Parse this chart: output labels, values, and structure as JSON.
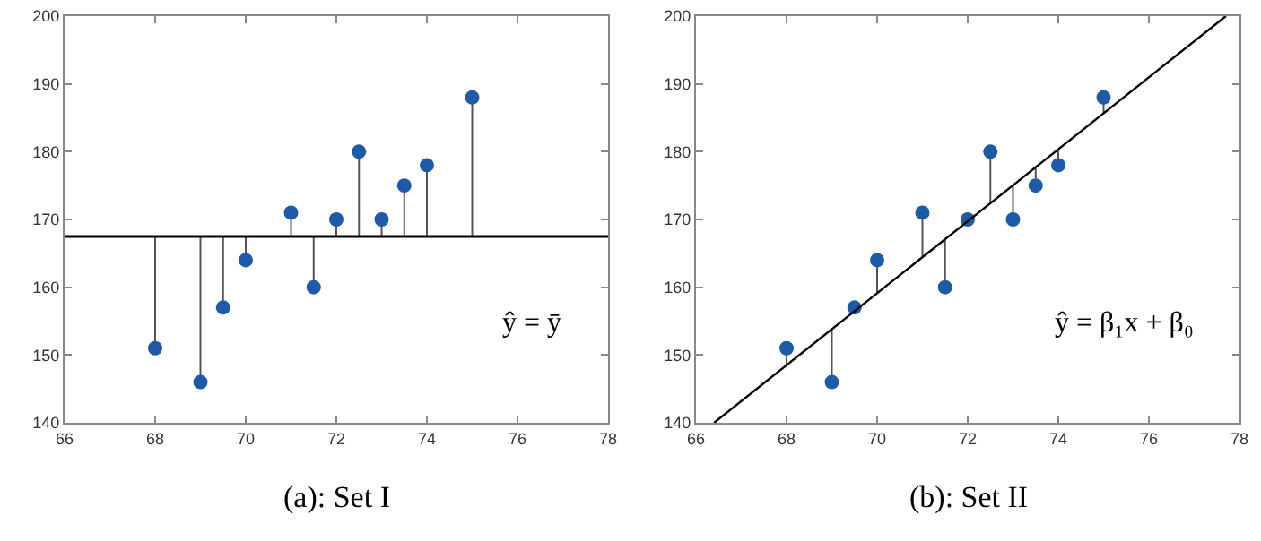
{
  "chart_data": [
    {
      "type": "scatter",
      "annotations": [
        "(a): Set I",
        "ŷ = ȳ"
      ],
      "series": [
        {
          "color": "#1f5aa6",
          "x": [
            68,
            69,
            69.5,
            70,
            71,
            71.5,
            72,
            72.5,
            73,
            73.5,
            74,
            75
          ],
          "values": [
            151,
            146,
            157,
            164,
            171,
            160,
            170,
            180,
            170,
            175,
            178,
            188
          ],
          "errors": [
            [
              151,
              167.5
            ],
            [
              146,
              167.5
            ],
            [
              157,
              167.5
            ],
            [
              164,
              167.5
            ],
            [
              167.5,
              171
            ],
            [
              160,
              167.5
            ],
            [
              167.5,
              170
            ],
            [
              167.5,
              180
            ],
            [
              167.5,
              170
            ],
            [
              167.5,
              175
            ],
            [
              167.5,
              178
            ],
            [
              167.5,
              188
            ]
          ]
        }
      ],
      "ref_lines": [
        {
          "axis": "y",
          "value": 167.5,
          "color": "#000000"
        }
      ],
      "xlim": [
        66,
        78
      ],
      "xticks": [
        66,
        68,
        70,
        72,
        74,
        76,
        78
      ],
      "ylim": [
        140,
        200
      ],
      "yticks": [
        140,
        150,
        160,
        170,
        180,
        190,
        200
      ],
      "grid": false,
      "marker": "circle"
    },
    {
      "type": "scatter",
      "annotations": [
        "(b): Set II",
        "ŷ = β₁x + β₀"
      ],
      "series": [
        {
          "color": "#1f5aa6",
          "x": [
            68,
            69,
            69.5,
            70,
            71,
            71.5,
            72,
            72.5,
            73,
            73.5,
            74,
            75
          ],
          "values": [
            151,
            146,
            157,
            164,
            171,
            160,
            170,
            180,
            170,
            175,
            178,
            188
          ],
          "errors": [
            [
              148.5,
              151
            ],
            [
              146,
              153.8
            ],
            null,
            [
              159.1,
              164
            ],
            [
              164.4,
              171
            ],
            [
              160,
              167.1
            ],
            null,
            [
              172.4,
              180
            ],
            [
              170,
              175
            ],
            [
              175,
              177.7
            ],
            [
              178,
              180.4
            ],
            [
              185.7,
              188
            ]
          ]
        },
        {
          "type": "line",
          "color": "#000000",
          "x": [
            66.4,
            77.7
          ],
          "values": [
            140,
            200
          ]
        }
      ],
      "xlim": [
        66,
        78
      ],
      "xticks": [
        66,
        68,
        70,
        72,
        74,
        76,
        78
      ],
      "ylim": [
        140,
        200
      ],
      "yticks": [
        140,
        150,
        160,
        170,
        180,
        190,
        200
      ],
      "grid": false
    }
  ]
}
